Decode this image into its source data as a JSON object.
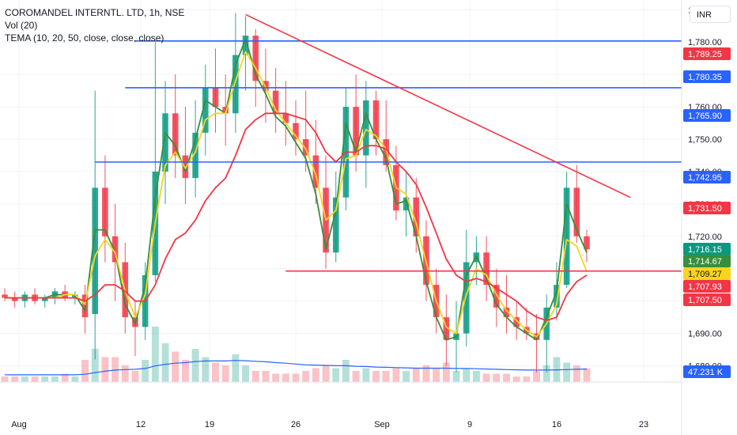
{
  "legend": {
    "symbol_line": "COROMANDEL INTERNTL. LTD, 1h, NSE",
    "volume_line": "Vol (20)",
    "tema_line": "TEMA (10, 20, 50, close, close, close)"
  },
  "currency": "INR",
  "chart_data": {
    "type": "line",
    "title": "COROMANDEL INTERNTL. LTD, 1h, NSE",
    "x_axis": {
      "tick_labels": [
        "Aug",
        "12",
        "19",
        "26",
        "Sep",
        "9",
        "16",
        "23"
      ]
    },
    "y_axis": {
      "range": [
        1675,
        1793
      ],
      "tick_labels": [
        "1,680.00",
        "1,690.00",
        "1,700.00",
        "1,710.00",
        "1,720.00",
        "1,730.00",
        "1,740.00",
        "1,750.00",
        "1,760.00",
        "1,770.00",
        "1,780.00",
        "1,790.00"
      ],
      "tick_values": [
        1680,
        1690,
        1700,
        1710,
        1720,
        1730,
        1740,
        1750,
        1760,
        1770,
        1780,
        1790
      ]
    },
    "price_labels": [
      {
        "text": "1,789.25",
        "value": 1789.25,
        "color": "#f23645"
      },
      {
        "text": "1,780.35",
        "value": 1780.35,
        "color": "#2962ff"
      },
      {
        "text": "1,765.90",
        "value": 1765.9,
        "color": "#2962ff"
      },
      {
        "text": "1,742.95",
        "value": 1742.95,
        "color": "#2962ff"
      },
      {
        "text": "1,731.50",
        "value": 1731.5,
        "color": "#f23645"
      },
      {
        "text": "1,716.15",
        "value": 1716.15,
        "color": "#089981"
      },
      {
        "text": "1,714.67",
        "value": 1714.67,
        "color": "#388e3c"
      },
      {
        "text": "1,709.27",
        "value": 1709.27,
        "color": "#f7d51d"
      },
      {
        "text": "1,707.93",
        "value": 1707.93,
        "color": "#f23645"
      },
      {
        "text": "1,707.50",
        "value": 1707.5,
        "color": "#f23645"
      }
    ],
    "volume_label": {
      "text": "47.231 K",
      "color": "#2962ff"
    },
    "drawings": {
      "horizontal_lines": [
        {
          "value": 1780.35,
          "color": "#2962ff",
          "from_session": 13
        },
        {
          "value": 1765.9,
          "color": "#2962ff",
          "from_session": 12
        },
        {
          "value": 1742.95,
          "color": "#2962ff",
          "from_session": 9
        },
        {
          "value": 1709.27,
          "color": "#f23645",
          "from_session": 28
        }
      ],
      "trend_line": {
        "color": "#f23645",
        "from": [
          24,
          1788.5
        ],
        "to": [
          60,
          1732
        ]
      }
    },
    "sessions": [
      {
        "o": 1702,
        "h": 1704,
        "l": 1700,
        "c": 1701
      },
      {
        "o": 1701,
        "h": 1703,
        "l": 1698,
        "c": 1700
      },
      {
        "o": 1700,
        "h": 1703,
        "l": 1698,
        "c": 1702
      },
      {
        "o": 1702,
        "h": 1704,
        "l": 1699,
        "c": 1700
      },
      {
        "o": 1700,
        "h": 1702,
        "l": 1698,
        "c": 1701
      },
      {
        "o": 1701,
        "h": 1704,
        "l": 1699,
        "c": 1703
      },
      {
        "o": 1703,
        "h": 1705,
        "l": 1700,
        "c": 1701
      },
      {
        "o": 1701,
        "h": 1703,
        "l": 1699,
        "c": 1702
      },
      {
        "o": 1702,
        "h": 1705,
        "l": 1690,
        "c": 1695
      },
      {
        "o": 1696,
        "h": 1765,
        "l": 1682,
        "c": 1735
      },
      {
        "o": 1735,
        "h": 1745,
        "l": 1712,
        "c": 1720
      },
      {
        "o": 1720,
        "h": 1730,
        "l": 1700,
        "c": 1712
      },
      {
        "o": 1712,
        "h": 1718,
        "l": 1690,
        "c": 1695
      },
      {
        "o": 1695,
        "h": 1700,
        "l": 1683,
        "c": 1692
      },
      {
        "o": 1692,
        "h": 1712,
        "l": 1688,
        "c": 1708
      },
      {
        "o": 1708,
        "h": 1780,
        "l": 1706,
        "c": 1740
      },
      {
        "o": 1740,
        "h": 1768,
        "l": 1730,
        "c": 1758
      },
      {
        "o": 1758,
        "h": 1770,
        "l": 1738,
        "c": 1745
      },
      {
        "o": 1745,
        "h": 1760,
        "l": 1730,
        "c": 1738
      },
      {
        "o": 1738,
        "h": 1762,
        "l": 1732,
        "c": 1752
      },
      {
        "o": 1752,
        "h": 1773,
        "l": 1745,
        "c": 1766
      },
      {
        "o": 1766,
        "h": 1778,
        "l": 1752,
        "c": 1760
      },
      {
        "o": 1760,
        "h": 1770,
        "l": 1748,
        "c": 1758
      },
      {
        "o": 1758,
        "h": 1789,
        "l": 1752,
        "c": 1776
      },
      {
        "o": 1776,
        "h": 1788,
        "l": 1765,
        "c": 1782
      },
      {
        "o": 1782,
        "h": 1784,
        "l": 1760,
        "c": 1768
      },
      {
        "o": 1768,
        "h": 1778,
        "l": 1755,
        "c": 1765
      },
      {
        "o": 1765,
        "h": 1772,
        "l": 1752,
        "c": 1758
      },
      {
        "o": 1758,
        "h": 1768,
        "l": 1748,
        "c": 1755
      },
      {
        "o": 1755,
        "h": 1762,
        "l": 1745,
        "c": 1750
      },
      {
        "o": 1750,
        "h": 1765,
        "l": 1740,
        "c": 1745
      },
      {
        "o": 1745,
        "h": 1756,
        "l": 1730,
        "c": 1735
      },
      {
        "o": 1735,
        "h": 1745,
        "l": 1710,
        "c": 1715
      },
      {
        "o": 1715,
        "h": 1740,
        "l": 1712,
        "c": 1732
      },
      {
        "o": 1732,
        "h": 1766,
        "l": 1728,
        "c": 1760
      },
      {
        "o": 1760,
        "h": 1770,
        "l": 1740,
        "c": 1745
      },
      {
        "o": 1745,
        "h": 1768,
        "l": 1735,
        "c": 1762
      },
      {
        "o": 1762,
        "h": 1765,
        "l": 1745,
        "c": 1750
      },
      {
        "o": 1750,
        "h": 1762,
        "l": 1740,
        "c": 1742
      },
      {
        "o": 1742,
        "h": 1748,
        "l": 1725,
        "c": 1728
      },
      {
        "o": 1728,
        "h": 1740,
        "l": 1720,
        "c": 1732
      },
      {
        "o": 1732,
        "h": 1738,
        "l": 1715,
        "c": 1720
      },
      {
        "o": 1720,
        "h": 1725,
        "l": 1700,
        "c": 1705
      },
      {
        "o": 1705,
        "h": 1710,
        "l": 1690,
        "c": 1695
      },
      {
        "o": 1695,
        "h": 1702,
        "l": 1680,
        "c": 1688
      },
      {
        "o": 1688,
        "h": 1700,
        "l": 1678,
        "c": 1690
      },
      {
        "o": 1690,
        "h": 1722,
        "l": 1686,
        "c": 1712
      },
      {
        "o": 1712,
        "h": 1720,
        "l": 1705,
        "c": 1715
      },
      {
        "o": 1715,
        "h": 1720,
        "l": 1700,
        "c": 1705
      },
      {
        "o": 1705,
        "h": 1710,
        "l": 1692,
        "c": 1698
      },
      {
        "o": 1698,
        "h": 1708,
        "l": 1690,
        "c": 1695
      },
      {
        "o": 1695,
        "h": 1700,
        "l": 1688,
        "c": 1692
      },
      {
        "o": 1692,
        "h": 1698,
        "l": 1688,
        "c": 1690
      },
      {
        "o": 1690,
        "h": 1696,
        "l": 1678,
        "c": 1688
      },
      {
        "o": 1688,
        "h": 1702,
        "l": 1678,
        "c": 1698
      },
      {
        "o": 1698,
        "h": 1712,
        "l": 1694,
        "c": 1705
      },
      {
        "o": 1705,
        "h": 1740,
        "l": 1704,
        "c": 1735
      },
      {
        "o": 1735,
        "h": 1742,
        "l": 1718,
        "c": 1720
      },
      {
        "o": 1720,
        "h": 1722,
        "l": 1712,
        "c": 1716
      }
    ],
    "volume": [
      2,
      2,
      2,
      2,
      2,
      2,
      3,
      2,
      8,
      12,
      9,
      9,
      6,
      4,
      8,
      20,
      14,
      11,
      8,
      12,
      9,
      7,
      6,
      10,
      6,
      4,
      4,
      3,
      3,
      3,
      4,
      5,
      6,
      5,
      8,
      4,
      5,
      4,
      4,
      5,
      4,
      5,
      6,
      5,
      7,
      4,
      5,
      4,
      3,
      3,
      3,
      2,
      2,
      4,
      6,
      9,
      7,
      6,
      5
    ],
    "series": [
      {
        "name": "TEMA (10, 20, 50, close, close, close)",
        "color": "#388e3c",
        "values": [
          1701,
          1701,
          1701,
          1701,
          1701,
          1702,
          1702,
          1702,
          1697,
          1722,
          1722,
          1715,
          1699,
          1693,
          1705,
          1732,
          1752,
          1748,
          1740,
          1750,
          1762,
          1760,
          1758,
          1773,
          1781,
          1770,
          1764,
          1757,
          1754,
          1749,
          1744,
          1733,
          1716,
          1728,
          1755,
          1746,
          1758,
          1750,
          1744,
          1730,
          1731,
          1720,
          1706,
          1695,
          1688,
          1689,
          1708,
          1714,
          1707,
          1699,
          1695,
          1692,
          1690,
          1688,
          1695,
          1703,
          1730,
          1722,
          1715
        ]
      },
      {
        "color": "#f7d51d",
        "values": [
          1701,
          1701,
          1701,
          1701,
          1701,
          1701,
          1702,
          1702,
          1699,
          1714,
          1719,
          1715,
          1703,
          1695,
          1702,
          1724,
          1742,
          1746,
          1741,
          1746,
          1756,
          1758,
          1758,
          1768,
          1777,
          1772,
          1766,
          1759,
          1755,
          1751,
          1747,
          1739,
          1725,
          1728,
          1744,
          1745,
          1753,
          1751,
          1747,
          1735,
          1733,
          1724,
          1712,
          1700,
          1692,
          1690,
          1702,
          1710,
          1708,
          1702,
          1697,
          1694,
          1691,
          1689,
          1693,
          1699,
          1719,
          1717,
          1709
        ]
      },
      {
        "color": "#f23645",
        "values": [
          1701,
          1701,
          1701,
          1701,
          1701,
          1701,
          1701,
          1701,
          1700,
          1702,
          1705,
          1705,
          1703,
          1700,
          1700,
          1705,
          1713,
          1719,
          1721,
          1725,
          1731,
          1735,
          1738,
          1745,
          1753,
          1756,
          1758,
          1758,
          1758,
          1757,
          1756,
          1752,
          1746,
          1743,
          1746,
          1746,
          1748,
          1748,
          1747,
          1743,
          1740,
          1736,
          1729,
          1721,
          1713,
          1708,
          1706,
          1707,
          1706,
          1704,
          1702,
          1700,
          1697,
          1695,
          1694,
          1695,
          1702,
          1706,
          1708
        ]
      }
    ],
    "volume_ma": [
      2.6,
      2.6,
      2.6,
      2.6,
      2.6,
      2.6,
      2.6,
      2.6,
      2.8,
      3.4,
      3.9,
      4.3,
      4.5,
      4.6,
      4.9,
      5.8,
      6.4,
      6.8,
      7.0,
      7.4,
      7.6,
      7.6,
      7.6,
      7.8,
      7.7,
      7.5,
      7.3,
      7.0,
      6.8,
      6.5,
      6.2,
      6.1,
      6.0,
      5.9,
      5.9,
      5.7,
      5.6,
      5.4,
      5.3,
      5.2,
      5.1,
      5.0,
      5.0,
      5.0,
      5.0,
      4.9,
      4.9,
      4.8,
      4.7,
      4.6,
      4.5,
      4.4,
      4.3,
      4.3,
      4.3,
      4.4,
      4.5,
      4.6,
      4.7
    ],
    "colors": {
      "up": "#089981",
      "down": "#f23645",
      "grid": "#f0f3fa",
      "axis_text": "#131722",
      "volume_ma": "#2962ff"
    }
  }
}
